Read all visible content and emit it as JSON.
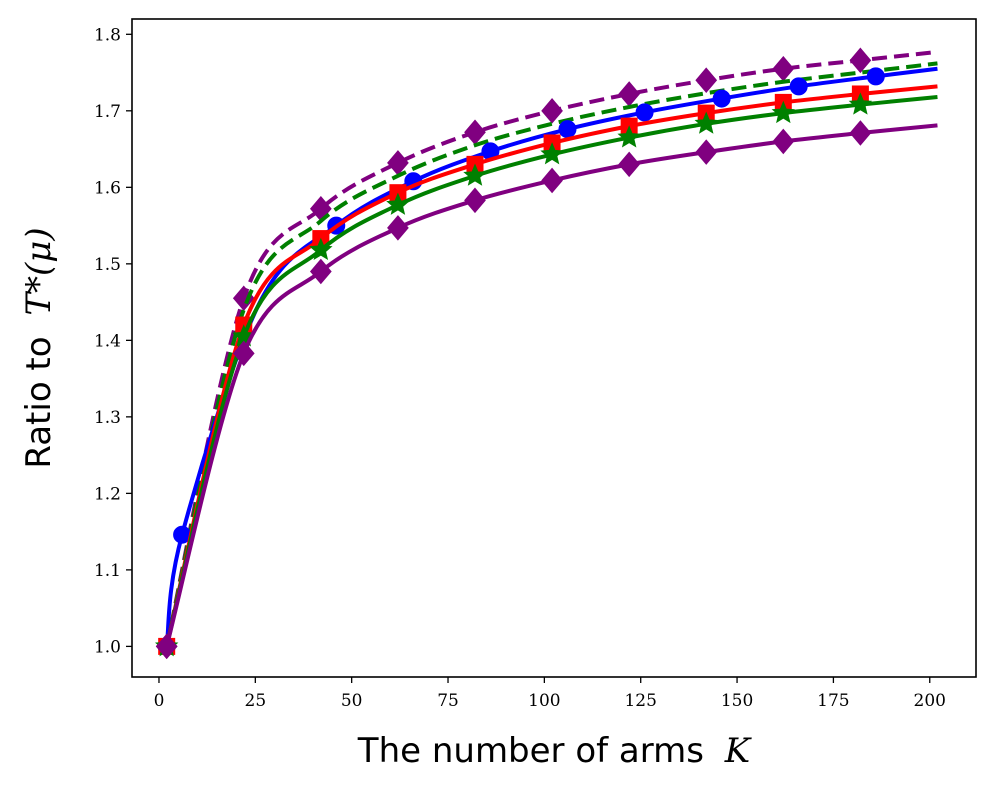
{
  "chart_data": {
    "type": "line",
    "xlabel": "The number of arms",
    "xlabel_var": "K",
    "ylabel": "Ratio to",
    "ylabel_math": "T*(μ)",
    "xlim": [
      -7,
      212
    ],
    "ylim": [
      0.96,
      1.82
    ],
    "xticks": [
      0,
      25,
      50,
      75,
      100,
      125,
      150,
      175,
      200
    ],
    "yticks": [
      1.0,
      1.1,
      1.2,
      1.3,
      1.4,
      1.5,
      1.6,
      1.7,
      1.8
    ],
    "legend": "none",
    "grid": false,
    "series": [
      {
        "color": "#800080",
        "dash": "dashed",
        "marker": "diamond",
        "x": [
          2,
          22,
          42,
          62,
          82,
          102,
          122,
          142,
          162,
          182,
          202
        ],
        "y": [
          1.0,
          1.455,
          1.572,
          1.632,
          1.672,
          1.7,
          1.722,
          1.74,
          1.755,
          1.766,
          1.777
        ],
        "marker_x": [
          2,
          22,
          42,
          62,
          82,
          102,
          122,
          142,
          162,
          182
        ]
      },
      {
        "color": "#008000",
        "dash": "dashed",
        "marker": "none",
        "x": [
          2,
          22,
          42,
          62,
          82,
          102,
          122,
          142,
          162,
          182,
          202
        ],
        "y": [
          1.0,
          1.44,
          1.556,
          1.615,
          1.655,
          1.683,
          1.705,
          1.723,
          1.738,
          1.75,
          1.762
        ]
      },
      {
        "color": "#0000ff",
        "dash": "solid",
        "marker": "circle",
        "x": [
          2,
          6,
          26,
          46,
          66,
          86,
          106,
          126,
          146,
          166,
          186,
          202
        ],
        "y": [
          1.0,
          1.146,
          1.448,
          1.55,
          1.608,
          1.647,
          1.676,
          1.698,
          1.716,
          1.732,
          1.745,
          1.755
        ],
        "marker_x": [
          2,
          6,
          46,
          66,
          86,
          106,
          126,
          146,
          166,
          186
        ]
      },
      {
        "color": "#ff0000",
        "dash": "solid",
        "marker": "square",
        "x": [
          2,
          22,
          42,
          62,
          82,
          102,
          122,
          142,
          162,
          182,
          202
        ],
        "y": [
          1.0,
          1.42,
          1.533,
          1.593,
          1.63,
          1.658,
          1.68,
          1.697,
          1.711,
          1.722,
          1.732
        ],
        "marker_x": [
          2,
          22,
          42,
          62,
          82,
          102,
          122,
          142,
          162,
          182
        ]
      },
      {
        "color": "#008000",
        "dash": "solid",
        "marker": "star",
        "x": [
          2,
          22,
          42,
          62,
          82,
          102,
          122,
          142,
          162,
          182,
          202
        ],
        "y": [
          1.0,
          1.405,
          1.518,
          1.577,
          1.615,
          1.643,
          1.665,
          1.683,
          1.697,
          1.708,
          1.718
        ],
        "marker_x": [
          2,
          22,
          42,
          62,
          82,
          102,
          122,
          142,
          162,
          182
        ]
      },
      {
        "color": "#800080",
        "dash": "solid",
        "marker": "diamond",
        "x": [
          2,
          22,
          42,
          62,
          82,
          102,
          122,
          142,
          162,
          182,
          202
        ],
        "y": [
          1.0,
          1.383,
          1.49,
          1.547,
          1.583,
          1.609,
          1.63,
          1.646,
          1.66,
          1.671,
          1.681
        ],
        "marker_x": [
          2,
          22,
          42,
          62,
          82,
          102,
          122,
          142,
          162,
          182
        ]
      }
    ]
  }
}
